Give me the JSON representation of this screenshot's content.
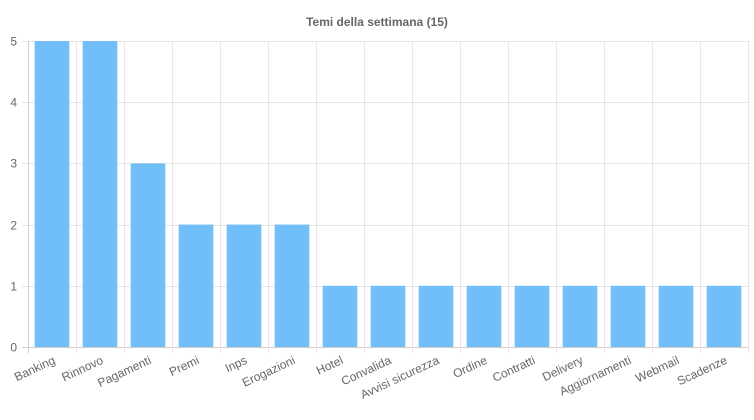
{
  "chart_data": {
    "type": "bar",
    "title": "Temi della settimana (15)",
    "xlabel": "",
    "ylabel": "",
    "categories": [
      "Banking",
      "Rinnovo",
      "Pagamenti",
      "Premi",
      "Inps",
      "Erogazioni",
      "Hotel",
      "Convalida",
      "Avvisi sicurezza",
      "Ordine",
      "Contratti",
      "Delivery",
      "Aggiornamenti",
      "Webmail",
      "Scadenze"
    ],
    "values": [
      5,
      5,
      3,
      2,
      2,
      2,
      1,
      1,
      1,
      1,
      1,
      1,
      1,
      1,
      1
    ],
    "ylim": [
      0,
      5
    ],
    "yticks": [
      0,
      1,
      2,
      3,
      4,
      5
    ],
    "grid": true,
    "legend": "none",
    "colors": {
      "bar": "#71bff8",
      "grid": "#e6e6e6",
      "text": "#666666"
    }
  }
}
